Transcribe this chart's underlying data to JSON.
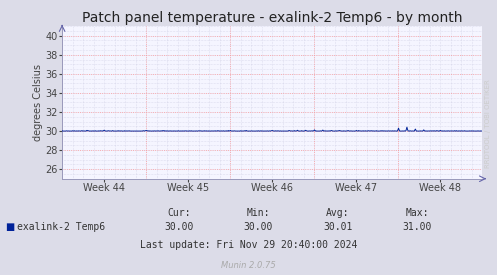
{
  "title": "Patch panel temperature - exalink-2 Temp6 - by month",
  "ylabel": "degrees Celsius",
  "background_color": "#dcdce8",
  "plot_bg_color": "#f5f5ff",
  "grid_color_h": "#ff9999",
  "grid_color_v": "#ff9999",
  "minor_grid_color": "#c8c8e0",
  "ylim": [
    25,
    41
  ],
  "yticks": [
    26,
    28,
    30,
    32,
    34,
    36,
    38,
    40
  ],
  "xtick_labels": [
    "Week 44",
    "Week 45",
    "Week 46",
    "Week 47",
    "Week 48"
  ],
  "line_color": "#002299",
  "line_base": 30.0,
  "spike_positions": [
    0.06,
    0.1,
    0.2,
    0.24,
    0.4,
    0.5,
    0.54,
    0.56,
    0.58,
    0.6,
    0.62,
    0.64,
    0.66,
    0.68,
    0.7,
    0.8,
    0.82,
    0.84,
    0.86,
    0.9
  ],
  "spike_heights": [
    0.05,
    0.08,
    0.06,
    0.04,
    0.05,
    0.05,
    0.05,
    0.06,
    0.08,
    0.1,
    0.08,
    0.06,
    0.05,
    0.05,
    0.04,
    0.3,
    0.4,
    0.2,
    0.1,
    0.05
  ],
  "legend_label": "exalink-2 Temp6",
  "legend_color": "#002299",
  "stats_cur": "30.00",
  "stats_min": "30.00",
  "stats_avg": "30.01",
  "stats_max": "31.00",
  "last_update": "Last update: Fri Nov 29 20:40:00 2024",
  "watermark": "RRDTOOL / TOBI OETIKER",
  "munin_version": "Munin 2.0.75",
  "title_fontsize": 10,
  "axis_fontsize": 7,
  "legend_fontsize": 7,
  "stats_fontsize": 7,
  "watermark_fontsize": 5
}
